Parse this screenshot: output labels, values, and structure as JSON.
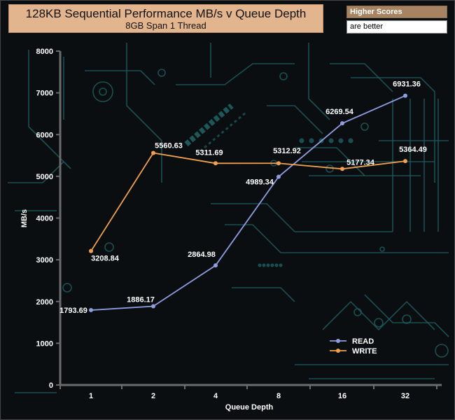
{
  "header": {
    "title": "128KB Sequential Performance MB/s v Queue Depth",
    "subtitle": "8GB Span 1 Thread"
  },
  "note": {
    "heading": "Higher Scores",
    "text": "are better"
  },
  "colors": {
    "read": "#8f9ce0",
    "write": "#f0a050",
    "axis": "#6b6b6b",
    "background": "#0b0e10",
    "circuit": "#1f5f63"
  },
  "chart_data": {
    "type": "line",
    "categories": [
      "1",
      "2",
      "4",
      "8",
      "16",
      "32"
    ],
    "xlabel": "Queue Depth",
    "ylabel": "MB/s",
    "ylim": [
      0,
      8000
    ],
    "yticks": [
      0,
      1000,
      2000,
      3000,
      4000,
      5000,
      6000,
      7000,
      8000
    ],
    "grid": false,
    "legend_position": "bottom-right",
    "series": [
      {
        "name": "READ",
        "values": [
          1793.69,
          1886.17,
          2864.98,
          4989.34,
          6269.54,
          6931.36
        ],
        "labels": [
          "1793.69",
          "1886.17",
          "2864.98",
          "4989.34",
          "6269.54",
          "6931.36"
        ]
      },
      {
        "name": "WRITE",
        "values": [
          3208.84,
          5560.63,
          5311.69,
          5312.92,
          5177.34,
          5364.49
        ],
        "labels": [
          "3208.84",
          "5560.63",
          "5311.69",
          "5312.92",
          "5177.34",
          "5364.49"
        ]
      }
    ]
  }
}
